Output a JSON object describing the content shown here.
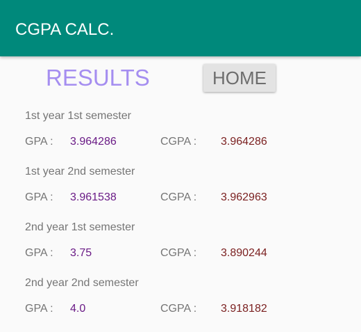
{
  "app_bar": {
    "title": "CGPA CALC."
  },
  "header": {
    "title": "RESULTS",
    "home_button": "HOME"
  },
  "labels": {
    "gpa": "GPA :",
    "cgpa": "CGPA :"
  },
  "semesters": [
    {
      "name": "1st year 1st semester",
      "gpa": "3.964286",
      "cgpa": "3.964286"
    },
    {
      "name": "1st year 2nd semester",
      "gpa": "3.961538",
      "cgpa": "3.962963"
    },
    {
      "name": "2nd year 1st semester",
      "gpa": "3.75",
      "cgpa": "3.890244"
    },
    {
      "name": "2nd year 2nd semester",
      "gpa": "4.0",
      "cgpa": "3.918182"
    }
  ],
  "colors": {
    "app_bar": "#00897b",
    "heading": "#a58ef0",
    "gpa_value": "#6a1b86",
    "cgpa_value": "#7a1f1f"
  }
}
